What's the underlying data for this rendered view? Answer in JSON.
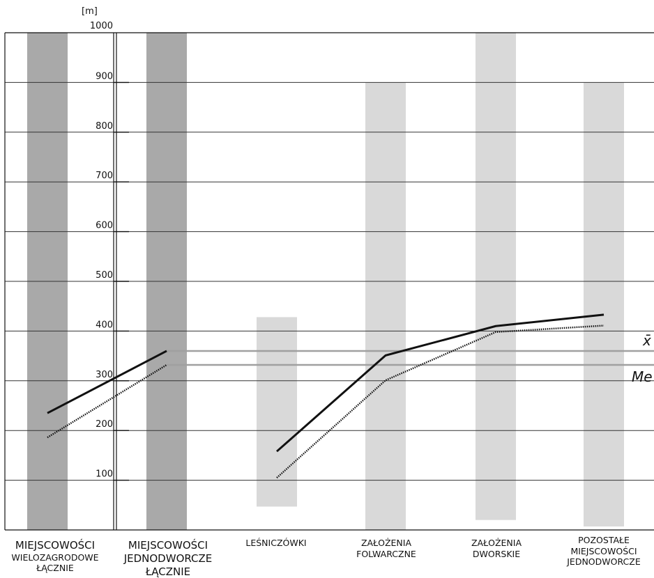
{
  "chart_data": {
    "type": "bar",
    "ylabel": "[m]",
    "ylim": [
      0,
      1000
    ],
    "yticks": [
      100,
      200,
      300,
      400,
      500,
      600,
      700,
      800,
      900,
      1000
    ],
    "grid": true,
    "categories": [
      "MIEJSCOWOŚCI WIELOZAGRODOWE ŁĄCZNIE",
      "MIEJSCOWOŚCI JEDNODWORCZE ŁĄCZNIE",
      "LEŚNICZÓWKI",
      "ZAŁOŻENIA FOLWARCZNE",
      "ZAŁOŻENIA DWORSKIE",
      "POZOSTAŁE MIEJSCOWOŚCI JEDNODWORCZE"
    ],
    "category_lines": [
      [
        "MIEJSCOWOŚCI",
        "WIELOZAGRODOWE",
        "ŁĄCZNIE"
      ],
      [
        "MIEJSCOWOŚCI",
        "JEDNODWORCZE",
        "ŁĄCZNIE"
      ],
      [
        "LEŚNICZÓWKI"
      ],
      [
        "ZAŁOŻENIA",
        "FOLWARCZNE"
      ],
      [
        "ZAŁOŻENIA",
        "DWORSKIE"
      ],
      [
        "POZOSTAŁE",
        "MIEJSCOWOŚCI",
        "JEDNODWORCZE"
      ]
    ],
    "ranges": [
      {
        "min": 0,
        "max": 1000,
        "shade": "dark"
      },
      {
        "min": 0,
        "max": 1000,
        "shade": "dark"
      },
      {
        "min": 47,
        "max": 428,
        "shade": "light"
      },
      {
        "min": 0,
        "max": 900,
        "shade": "light"
      },
      {
        "min": 20,
        "max": 1000,
        "shade": "light"
      },
      {
        "min": 7,
        "max": 900,
        "shade": "light"
      }
    ],
    "series": [
      {
        "style": "solid",
        "values": [
          235,
          360,
          158,
          351,
          410,
          433
        ]
      },
      {
        "style": "dotted",
        "values": [
          186,
          332,
          105,
          301,
          398,
          411
        ]
      }
    ],
    "segments": [
      [
        0,
        1
      ],
      [
        2,
        3,
        4,
        5
      ]
    ],
    "reference_lines": [
      {
        "label": "x̄",
        "value": 360
      },
      {
        "label": "Me",
        "value": 332
      }
    ],
    "colors": {
      "dark_bar": "#a9a9a9",
      "light_bar": "#d9d9d9",
      "line": "#111111",
      "grid": "#333333",
      "ref_line": "#a0a0a0"
    }
  }
}
